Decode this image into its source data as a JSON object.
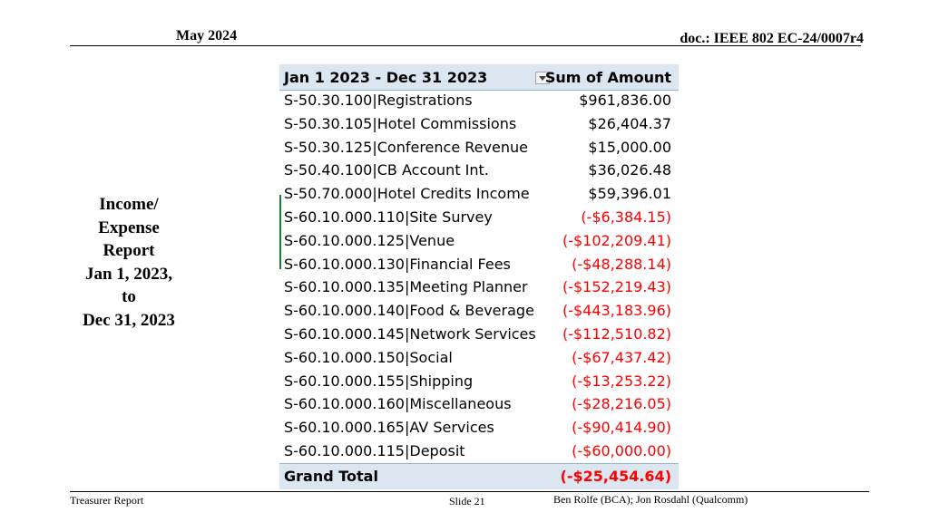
{
  "header": {
    "date": "May 2024",
    "doc": "doc.: IEEE 802 EC-24/0007r4"
  },
  "side_title": {
    "lines": [
      "Income/",
      "Expense",
      "Report",
      "Jan 1, 2023,",
      "to",
      "Dec 31, 2023"
    ]
  },
  "pivot": {
    "header_label": "Jan 1 2023 - Dec 31 2023",
    "header_value": "Sum of Amount",
    "filter_icon": "dropdown-arrow-icon",
    "negative_color": "#ff0000",
    "rows": [
      {
        "code": "S-50.30.100|Registrations",
        "amount": "$961,836.00",
        "negative": false
      },
      {
        "code": "S-50.30.105|Hotel Commissions",
        "amount": "$26,404.37",
        "negative": false
      },
      {
        "code": "S-50.30.125|Conference Revenue",
        "amount": "$15,000.00",
        "negative": false
      },
      {
        "code": "S-50.40.100|CB Account Int.",
        "amount": "$36,026.48",
        "negative": false
      },
      {
        "code": "S-50.70.000|Hotel Credits Income",
        "amount": "$59,396.01",
        "negative": false
      },
      {
        "code": "S-60.10.000.110|Site Survey",
        "amount": "(-$6,384.15)",
        "negative": true
      },
      {
        "code": "S-60.10.000.125|Venue",
        "amount": "(-$102,209.41)",
        "negative": true
      },
      {
        "code": "S-60.10.000.130|Financial Fees",
        "amount": "(-$48,288.14)",
        "negative": true
      },
      {
        "code": "S-60.10.000.135|Meeting Planner",
        "amount": "(-$152,219.43)",
        "negative": true
      },
      {
        "code": "S-60.10.000.140|Food & Beverage",
        "amount": "(-$443,183.96)",
        "negative": true
      },
      {
        "code": "S-60.10.000.145|Network Services",
        "amount": "(-$112,510.82)",
        "negative": true
      },
      {
        "code": "S-60.10.000.150|Social",
        "amount": "(-$67,437.42)",
        "negative": true
      },
      {
        "code": "S-60.10.000.155|Shipping",
        "amount": "(-$13,253.22)",
        "negative": true
      },
      {
        "code": "S-60.10.000.160|Miscellaneous",
        "amount": "(-$28,216.05)",
        "negative": true
      },
      {
        "code": "S-60.10.000.165|AV Services",
        "amount": "(-$90,414.90)",
        "negative": true
      },
      {
        "code": "S-60.10.000.115|Deposit",
        "amount": "(-$60,000.00)",
        "negative": true
      }
    ],
    "grand_total_label": "Grand Total",
    "grand_total_value": "(-$25,454.64)"
  },
  "footer": {
    "left": "Treasurer Report",
    "center": "Slide 21",
    "right": "Ben Rolfe (BCA);   Jon Rosdahl (Qualcomm)"
  }
}
